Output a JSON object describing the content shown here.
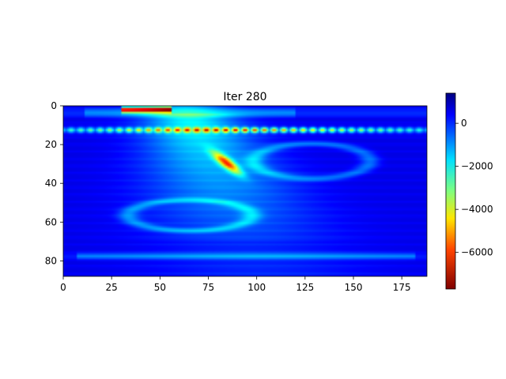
{
  "chart_data": {
    "type": "heatmap",
    "title": "Iter 280",
    "xlabel": "",
    "ylabel": "",
    "colormap": "jet_r",
    "grid": false,
    "x_range": [
      0,
      188
    ],
    "y_range": [
      88,
      0
    ],
    "x_ticks": [
      0,
      25,
      50,
      75,
      100,
      125,
      150,
      175
    ],
    "y_ticks": [
      0,
      20,
      40,
      60,
      80
    ],
    "colorbar": {
      "range": [
        -7700,
        1400
      ],
      "ticks": [
        0,
        -2000,
        -4000,
        -6000
      ],
      "tick_labels": [
        "0",
        "−2000",
        "−4000",
        "−6000"
      ],
      "placement": "right"
    },
    "features": {
      "background_value": 500,
      "shallow_row_y": 12,
      "shallow_spike_spacing": 5,
      "shallow_spike_value": -5500,
      "deep_row_y": 77,
      "top_band_x": [
        30,
        55
      ],
      "top_band_y": 1.5,
      "top_band_value": -7200,
      "diagonal_anomaly_center": [
        84,
        29
      ],
      "diagonal_anomaly_value": -5200,
      "ellipse_right_center": [
        128,
        28
      ],
      "ellipse_left_center": [
        65,
        56
      ],
      "broad_plume_value": -2600
    }
  }
}
